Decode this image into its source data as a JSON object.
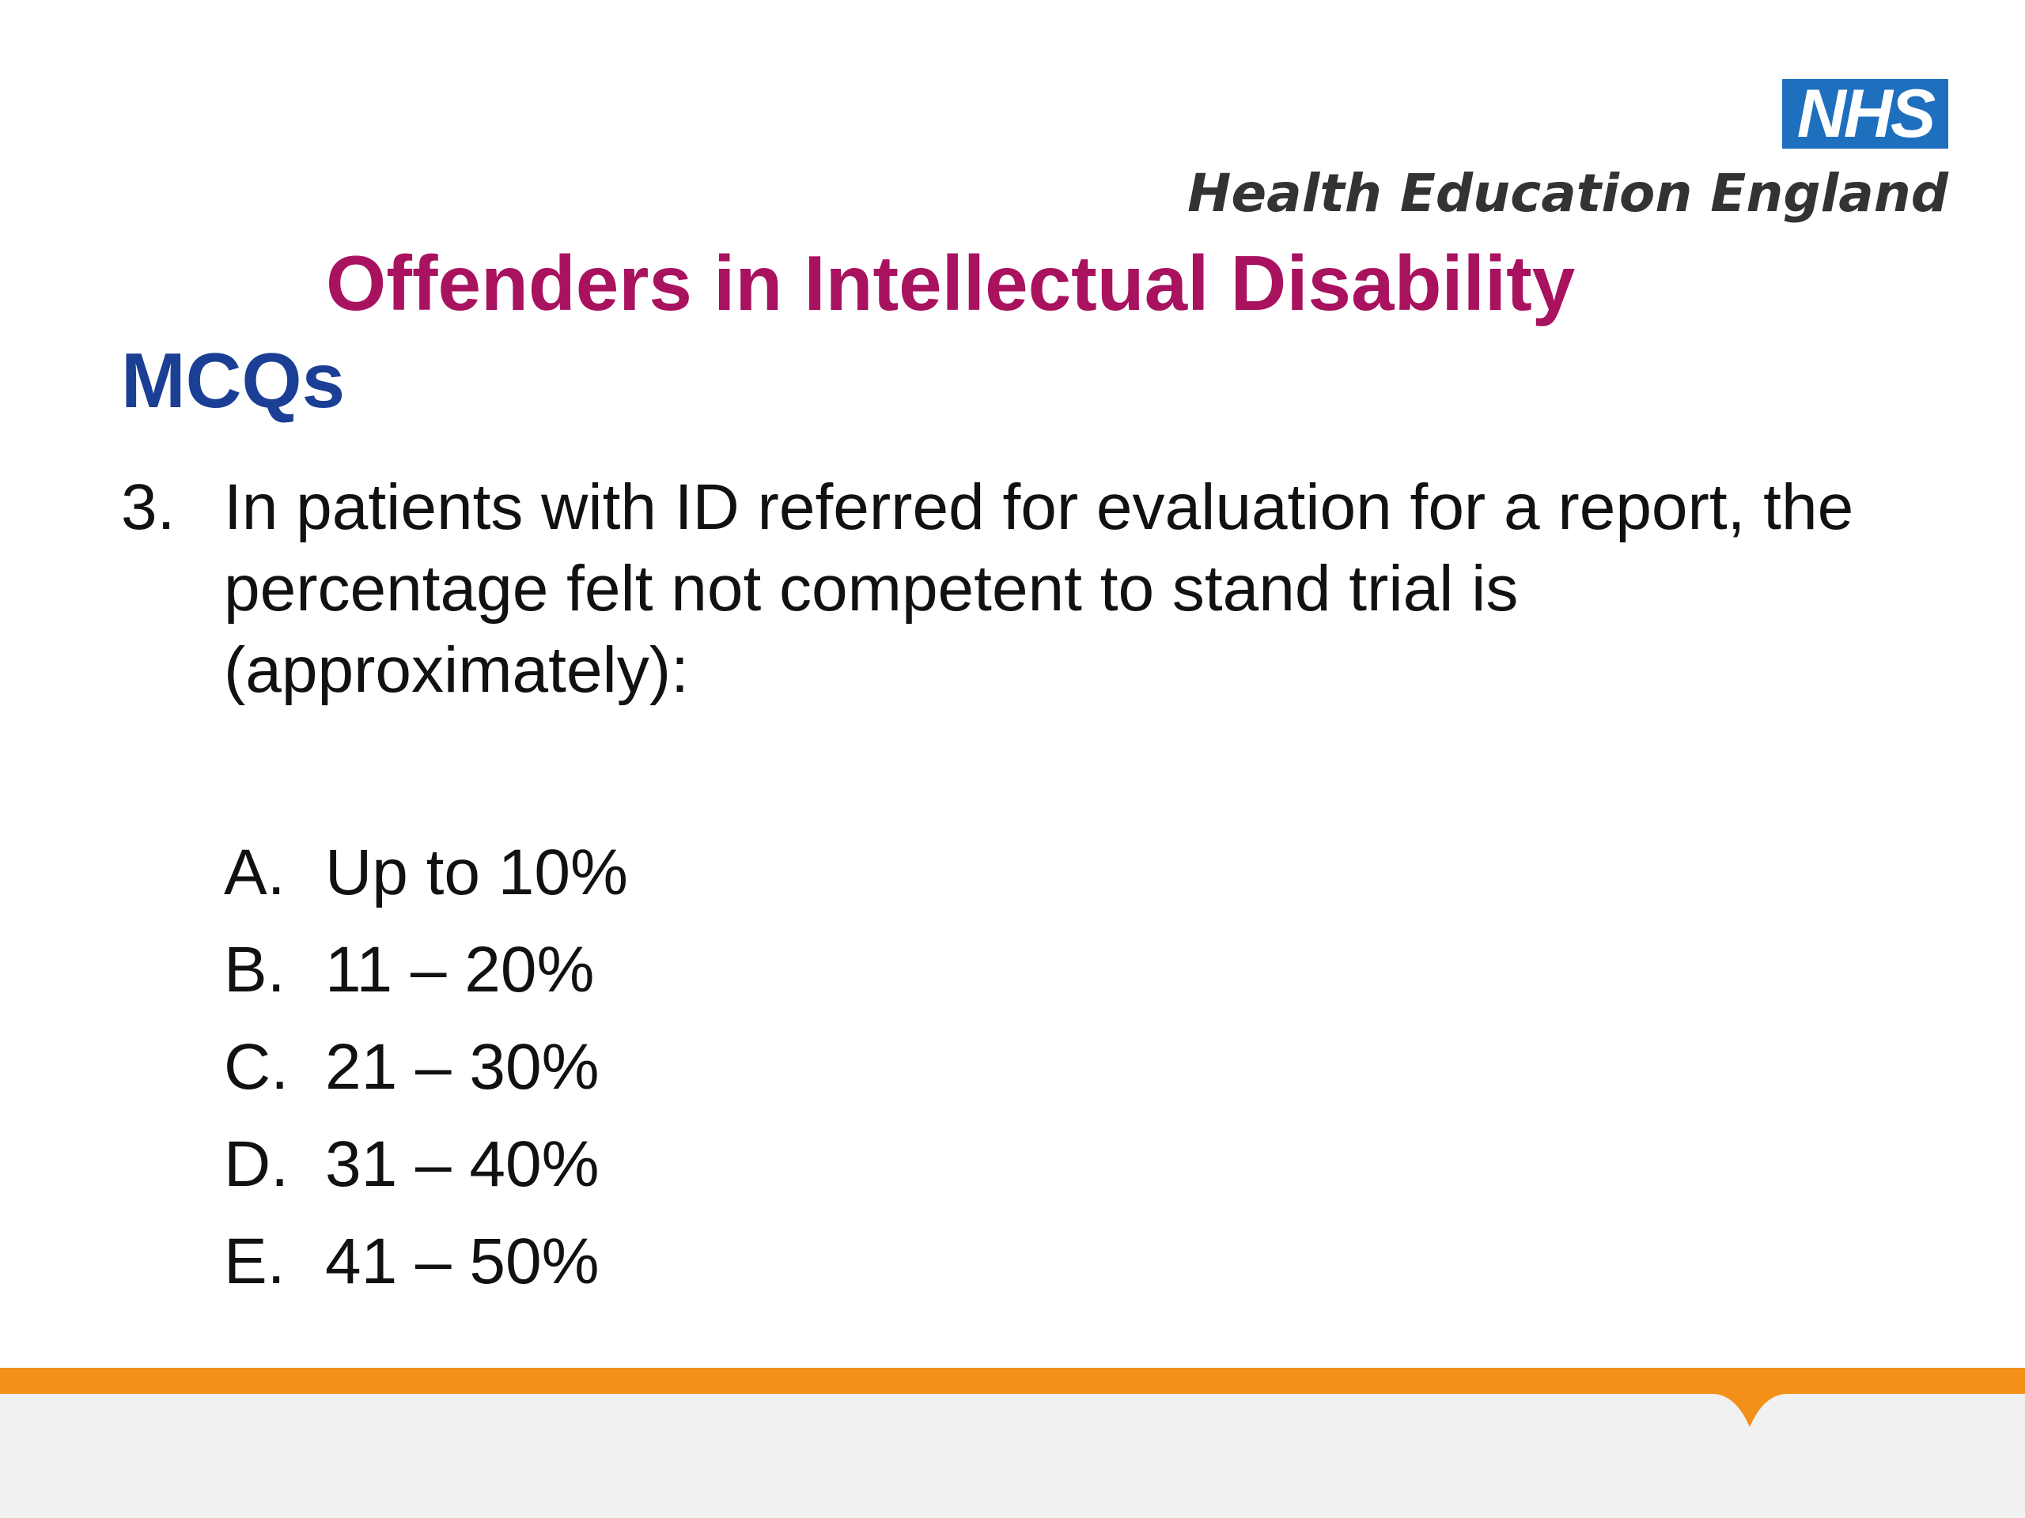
{
  "logo": {
    "badge_text": "NHS",
    "org_name": "Health Education England"
  },
  "slide": {
    "title": "Offenders in Intellectual Disability",
    "subtitle": "MCQs"
  },
  "question": {
    "number": "3.",
    "text": "In patients with ID referred for evaluation for a report, the percentage felt not competent to stand trial is (approximately):"
  },
  "options": [
    {
      "letter": "A.",
      "text": "Up to 10%"
    },
    {
      "letter": "B.",
      "text": "11 – 20%"
    },
    {
      "letter": "C.",
      "text": "21 – 30%"
    },
    {
      "letter": "D.",
      "text": "31 – 40%"
    },
    {
      "letter": "E.",
      "text": "41 – 50%"
    }
  ],
  "colors": {
    "nhs_blue": "#1f6fbf",
    "title_magenta": "#a8125f",
    "subtitle_blue": "#1b3f95",
    "footer_orange": "#f39019",
    "footer_grey": "#f1f1f1"
  }
}
